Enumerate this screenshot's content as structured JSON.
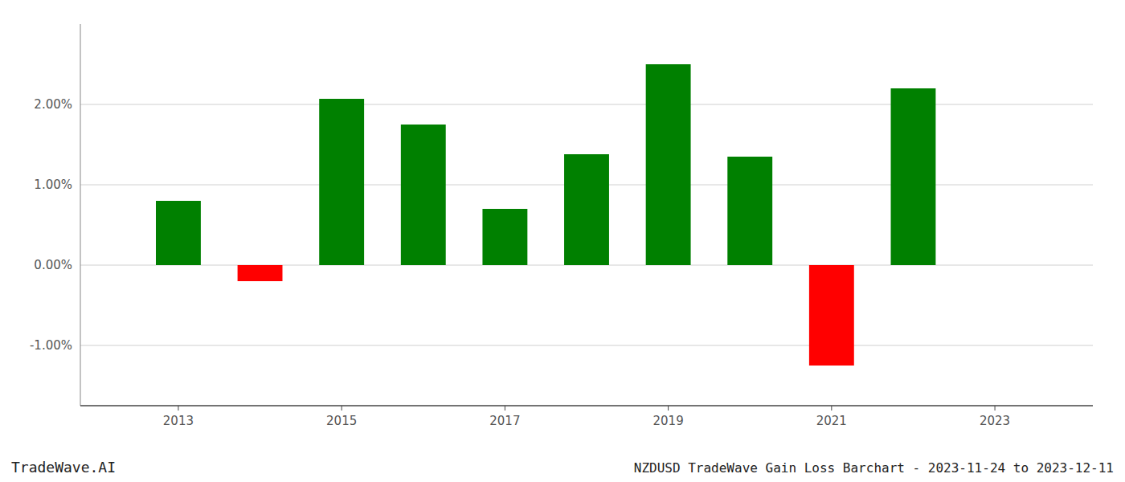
{
  "chart_data": {
    "type": "bar",
    "title": "NZDUSD TradeWave Gain Loss Barchart - 2023-11-24 to 2023-12-11",
    "subtitle": "TradeWave.AI",
    "x": [
      2013,
      2014,
      2015,
      2016,
      2017,
      2018,
      2019,
      2020,
      2021,
      2022
    ],
    "values": [
      0.008,
      -0.002,
      0.0207,
      0.0175,
      0.007,
      0.0138,
      0.025,
      0.0135,
      -0.0125,
      0.022
    ],
    "colors": [
      "#008000",
      "#ff0000",
      "#008000",
      "#008000",
      "#008000",
      "#008000",
      "#008000",
      "#008000",
      "#ff0000",
      "#008000"
    ],
    "xlim": [
      2011.8,
      2024.2
    ],
    "xticks": [
      2013,
      2015,
      2017,
      2019,
      2021,
      2023
    ],
    "ylim": [
      -0.0175,
      0.03
    ],
    "yticks": [
      {
        "value": -0.01,
        "label": "-1.00%"
      },
      {
        "value": 0.0,
        "label": "0.00%"
      },
      {
        "value": 0.01,
        "label": "1.00%"
      },
      {
        "value": 0.02,
        "label": "2.00%"
      }
    ],
    "grid": true
  }
}
